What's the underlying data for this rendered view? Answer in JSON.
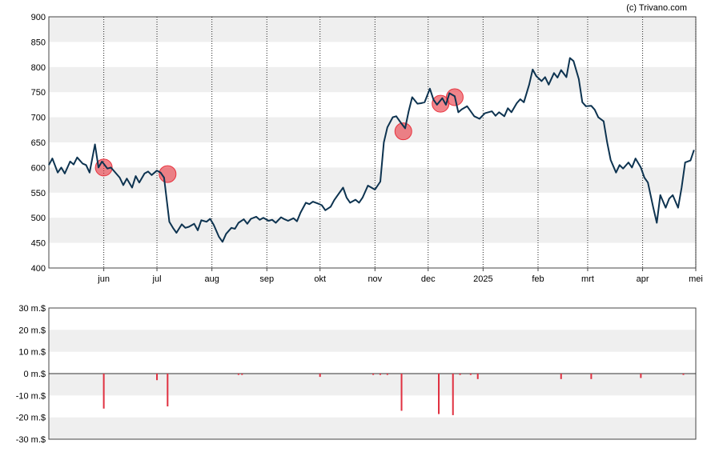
{
  "credit": "(c) Trivano.com",
  "colors": {
    "line": "#0d3350",
    "marker": "#e8333e",
    "band": "#efefef",
    "volume": "#e03040"
  },
  "chart_data": [
    {
      "type": "line",
      "ylim": [
        400,
        900
      ],
      "y_ticks": [
        400,
        450,
        500,
        550,
        600,
        650,
        700,
        750,
        800,
        850,
        900
      ],
      "x_range": [
        "2024-05-01",
        "2025-05-01"
      ],
      "x_ticks": [
        {
          "date": "2024-06-01",
          "label": "jun"
        },
        {
          "date": "2024-07-01",
          "label": "jul"
        },
        {
          "date": "2024-08-01",
          "label": "aug"
        },
        {
          "date": "2024-09-01",
          "label": "sep"
        },
        {
          "date": "2024-10-01",
          "label": "okt"
        },
        {
          "date": "2024-11-01",
          "label": "nov"
        },
        {
          "date": "2024-12-01",
          "label": "dec"
        },
        {
          "date": "2025-01-01",
          "label": "2025"
        },
        {
          "date": "2025-02-01",
          "label": "feb"
        },
        {
          "date": "2025-03-01",
          "label": "mrt"
        },
        {
          "date": "2025-04-01",
          "label": "apr"
        },
        {
          "date": "2025-05-01",
          "label": "mei"
        }
      ],
      "grid": "horizontal bands and dotted vertical lines",
      "series": [
        {
          "points": [
            [
              "2024-05-01",
              605
            ],
            [
              "2024-05-03",
              618
            ],
            [
              "2024-05-06",
              590
            ],
            [
              "2024-05-08",
              600
            ],
            [
              "2024-05-10",
              588
            ],
            [
              "2024-05-13",
              612
            ],
            [
              "2024-05-15",
              606
            ],
            [
              "2024-05-17",
              620
            ],
            [
              "2024-05-20",
              608
            ],
            [
              "2024-05-22",
              605
            ],
            [
              "2024-05-24",
              590
            ],
            [
              "2024-05-27",
              646
            ],
            [
              "2024-05-29",
              600
            ],
            [
              "2024-05-31",
              612
            ],
            [
              "2024-06-03",
              598
            ],
            [
              "2024-06-05",
              600
            ],
            [
              "2024-06-07",
              592
            ],
            [
              "2024-06-10",
              580
            ],
            [
              "2024-06-12",
              565
            ],
            [
              "2024-06-14",
              578
            ],
            [
              "2024-06-17",
              560
            ],
            [
              "2024-06-19",
              583
            ],
            [
              "2024-06-21",
              570
            ],
            [
              "2024-06-24",
              588
            ],
            [
              "2024-06-26",
              592
            ],
            [
              "2024-06-28",
              585
            ],
            [
              "2024-07-01",
              594
            ],
            [
              "2024-07-03",
              590
            ],
            [
              "2024-07-05",
              580
            ],
            [
              "2024-07-08",
              492
            ],
            [
              "2024-07-10",
              480
            ],
            [
              "2024-07-12",
              470
            ],
            [
              "2024-07-15",
              487
            ],
            [
              "2024-07-17",
              480
            ],
            [
              "2024-07-19",
              482
            ],
            [
              "2024-07-22",
              488
            ],
            [
              "2024-07-24",
              475
            ],
            [
              "2024-07-26",
              495
            ],
            [
              "2024-07-29",
              492
            ],
            [
              "2024-07-31",
              498
            ],
            [
              "2024-08-02",
              486
            ],
            [
              "2024-08-05",
              462
            ],
            [
              "2024-08-07",
              452
            ],
            [
              "2024-08-09",
              468
            ],
            [
              "2024-08-12",
              480
            ],
            [
              "2024-08-14",
              478
            ],
            [
              "2024-08-16",
              490
            ],
            [
              "2024-08-19",
              497
            ],
            [
              "2024-08-21",
              488
            ],
            [
              "2024-08-23",
              498
            ],
            [
              "2024-08-26",
              502
            ],
            [
              "2024-08-28",
              496
            ],
            [
              "2024-08-30",
              500
            ],
            [
              "2024-09-02",
              494
            ],
            [
              "2024-09-04",
              496
            ],
            [
              "2024-09-06",
              490
            ],
            [
              "2024-09-09",
              501
            ],
            [
              "2024-09-11",
              497
            ],
            [
              "2024-09-13",
              494
            ],
            [
              "2024-09-16",
              499
            ],
            [
              "2024-09-18",
              493
            ],
            [
              "2024-09-20",
              510
            ],
            [
              "2024-09-23",
              530
            ],
            [
              "2024-09-25",
              527
            ],
            [
              "2024-09-27",
              532
            ],
            [
              "2024-09-30",
              528
            ],
            [
              "2024-10-02",
              525
            ],
            [
              "2024-10-04",
              515
            ],
            [
              "2024-10-07",
              522
            ],
            [
              "2024-10-09",
              535
            ],
            [
              "2024-10-11",
              545
            ],
            [
              "2024-10-14",
              560
            ],
            [
              "2024-10-16",
              540
            ],
            [
              "2024-10-18",
              530
            ],
            [
              "2024-10-21",
              536
            ],
            [
              "2024-10-23",
              530
            ],
            [
              "2024-10-25",
              540
            ],
            [
              "2024-10-28",
              564
            ],
            [
              "2024-10-30",
              560
            ],
            [
              "2024-11-01",
              556
            ],
            [
              "2024-11-04",
              572
            ],
            [
              "2024-11-06",
              650
            ],
            [
              "2024-11-08",
              680
            ],
            [
              "2024-11-11",
              700
            ],
            [
              "2024-11-13",
              702
            ],
            [
              "2024-11-15",
              692
            ],
            [
              "2024-11-18",
              678
            ],
            [
              "2024-11-20",
              712
            ],
            [
              "2024-11-22",
              740
            ],
            [
              "2024-11-25",
              727
            ],
            [
              "2024-11-27",
              728
            ],
            [
              "2024-11-29",
              730
            ],
            [
              "2024-12-02",
              757
            ],
            [
              "2024-12-04",
              735
            ],
            [
              "2024-12-06",
              725
            ],
            [
              "2024-12-09",
              738
            ],
            [
              "2024-12-11",
              725
            ],
            [
              "2024-12-13",
              748
            ],
            [
              "2024-12-16",
              742
            ],
            [
              "2024-12-18",
              710
            ],
            [
              "2024-12-20",
              716
            ],
            [
              "2024-12-23",
              722
            ],
            [
              "2024-12-27",
              702
            ],
            [
              "2024-12-30",
              697
            ],
            [
              "2025-01-02",
              708
            ],
            [
              "2025-01-06",
              712
            ],
            [
              "2025-01-08",
              703
            ],
            [
              "2025-01-10",
              710
            ],
            [
              "2025-01-13",
              702
            ],
            [
              "2025-01-15",
              718
            ],
            [
              "2025-01-17",
              710
            ],
            [
              "2025-01-20",
              728
            ],
            [
              "2025-01-22",
              736
            ],
            [
              "2025-01-24",
              730
            ],
            [
              "2025-01-27",
              765
            ],
            [
              "2025-01-29",
              795
            ],
            [
              "2025-01-31",
              782
            ],
            [
              "2025-02-03",
              772
            ],
            [
              "2025-02-05",
              780
            ],
            [
              "2025-02-07",
              765
            ],
            [
              "2025-02-10",
              788
            ],
            [
              "2025-02-12",
              779
            ],
            [
              "2025-02-14",
              794
            ],
            [
              "2025-02-17",
              780
            ],
            [
              "2025-02-19",
              818
            ],
            [
              "2025-02-21",
              812
            ],
            [
              "2025-02-24",
              776
            ],
            [
              "2025-02-26",
              730
            ],
            [
              "2025-02-28",
              722
            ],
            [
              "2025-03-03",
              723
            ],
            [
              "2025-03-05",
              715
            ],
            [
              "2025-03-07",
              700
            ],
            [
              "2025-03-10",
              692
            ],
            [
              "2025-03-12",
              650
            ],
            [
              "2025-03-14",
              615
            ],
            [
              "2025-03-17",
              590
            ],
            [
              "2025-03-19",
              605
            ],
            [
              "2025-03-21",
              598
            ],
            [
              "2025-03-24",
              610
            ],
            [
              "2025-03-26",
              600
            ],
            [
              "2025-03-28",
              618
            ],
            [
              "2025-03-31",
              600
            ],
            [
              "2025-04-02",
              580
            ],
            [
              "2025-04-04",
              570
            ],
            [
              "2025-04-07",
              520
            ],
            [
              "2025-04-09",
              490
            ],
            [
              "2025-04-11",
              545
            ],
            [
              "2025-04-14",
              520
            ],
            [
              "2025-04-16",
              538
            ],
            [
              "2025-04-18",
              545
            ],
            [
              "2025-04-21",
              520
            ],
            [
              "2025-04-23",
              560
            ],
            [
              "2025-04-25",
              610
            ],
            [
              "2025-04-28",
              614
            ],
            [
              "2025-04-30",
              635
            ]
          ]
        }
      ],
      "markers": [
        {
          "date": "2024-06-01",
          "value": 600
        },
        {
          "date": "2024-07-07",
          "value": 587
        },
        {
          "date": "2024-11-17",
          "value": 672
        },
        {
          "date": "2024-12-08",
          "value": 727
        },
        {
          "date": "2024-12-16",
          "value": 740
        }
      ]
    },
    {
      "type": "bar",
      "ylim": [
        -30,
        30
      ],
      "y_ticks": [
        {
          "value": 30,
          "label": "30 m.$"
        },
        {
          "value": 20,
          "label": "20 m.$"
        },
        {
          "value": 10,
          "label": "10 m.$"
        },
        {
          "value": 0,
          "label": "0 m.$"
        },
        {
          "value": -10,
          "label": "-10 m.$"
        },
        {
          "value": -20,
          "label": "-20 m.$"
        },
        {
          "value": -30,
          "label": "-30 m.$"
        }
      ],
      "bars": [
        {
          "date": "2024-06-01",
          "value": -16
        },
        {
          "date": "2024-07-01",
          "value": -3
        },
        {
          "date": "2024-07-07",
          "value": -15
        },
        {
          "date": "2024-08-16",
          "value": -0.6
        },
        {
          "date": "2024-08-18",
          "value": -0.6
        },
        {
          "date": "2024-10-01",
          "value": -1.5
        },
        {
          "date": "2024-10-31",
          "value": -0.6
        },
        {
          "date": "2024-11-04",
          "value": -0.6
        },
        {
          "date": "2024-11-08",
          "value": -0.6
        },
        {
          "date": "2024-11-16",
          "value": -17
        },
        {
          "date": "2024-12-07",
          "value": -18.5
        },
        {
          "date": "2024-12-15",
          "value": -19
        },
        {
          "date": "2024-12-19",
          "value": -0.6
        },
        {
          "date": "2024-12-25",
          "value": -0.6
        },
        {
          "date": "2024-12-29",
          "value": -2.5
        },
        {
          "date": "2025-02-14",
          "value": -2.5
        },
        {
          "date": "2025-03-03",
          "value": -2.5
        },
        {
          "date": "2025-03-31",
          "value": -2
        },
        {
          "date": "2025-04-24",
          "value": -0.6
        }
      ]
    }
  ]
}
